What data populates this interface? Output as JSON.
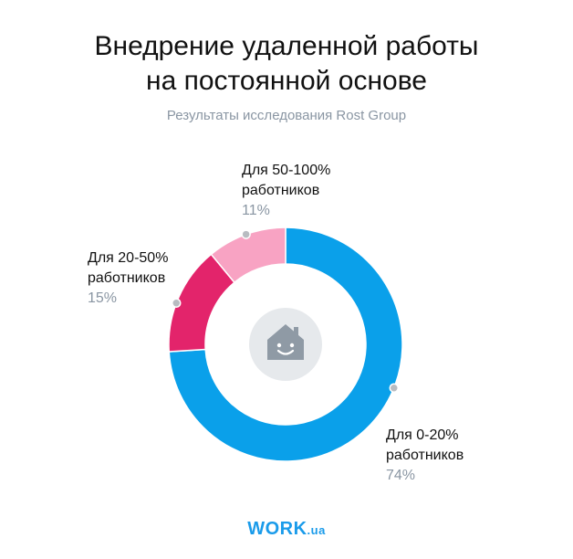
{
  "header": {
    "title_line1": "Внедрение удаленной работы",
    "title_line2": "на постоянной основе",
    "subtitle": "Результаты исследования Rost Group"
  },
  "chart_data": {
    "type": "pie",
    "variant": "donut",
    "title": "Внедрение удаленной работы на постоянной основе",
    "subtitle": "Результаты исследования Rost Group",
    "series": [
      {
        "label_line1": "Для 0-20%",
        "label_line2": "работников",
        "value": 74,
        "value_label": "74%",
        "color": "#0aa0ea"
      },
      {
        "label_line1": "Для 20-50%",
        "label_line2": "работников",
        "value": 15,
        "value_label": "15%",
        "color": "#e3246b"
      },
      {
        "label_line1": "Для 50-100%",
        "label_line2": "работников",
        "value": 11,
        "value_label": "11%",
        "color": "#f8a3c3"
      }
    ],
    "center_icon": "house-smile-icon"
  },
  "footer": {
    "logo_main": "WORK",
    "logo_suffix": ".ua",
    "logo_color": "#1a9bea"
  }
}
